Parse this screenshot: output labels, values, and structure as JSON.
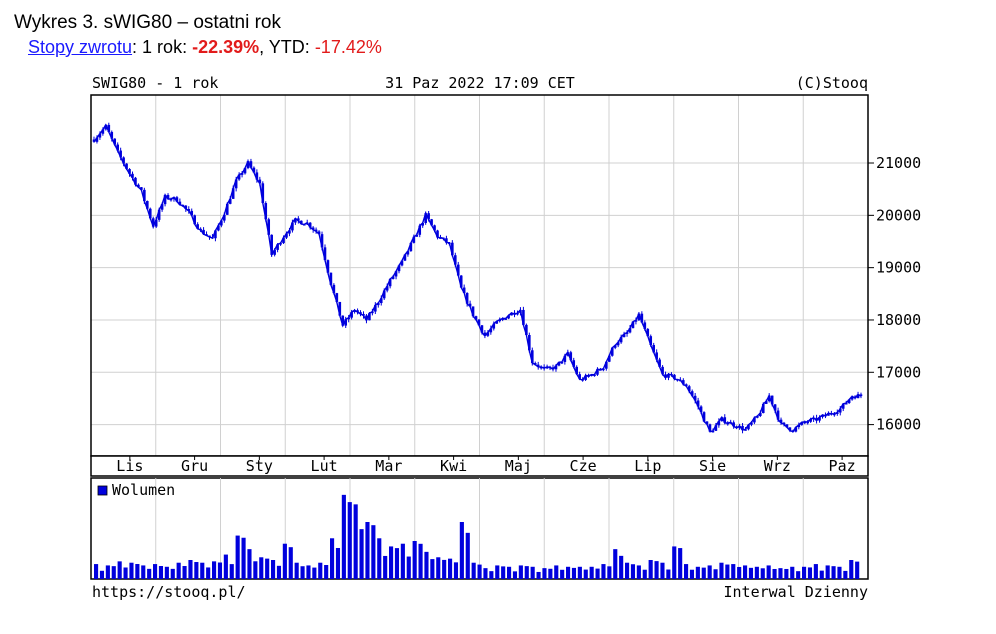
{
  "figure_title": "Wykres 3. sWIG80 – ostatni rok",
  "returns": {
    "link_label": "Stopy zwrotu",
    "one_year_label": ": 1 rok: ",
    "one_year_value": "-22.39%",
    "ytd_label": ", YTD: ",
    "ytd_value": "-17.42%"
  },
  "header": {
    "left": "SWIG80 - 1 rok",
    "center": "31 Paz 2022 17:09 CET",
    "right": "(C)Stooq"
  },
  "footer": {
    "left": "https://stooq.pl/",
    "right": "Interwal Dzienny"
  },
  "legend": {
    "volume": "Wolumen"
  },
  "colors": {
    "series": "#0000dd",
    "grid": "#d0d0d0"
  },
  "chart_data": {
    "type": "line",
    "title": "",
    "ylim": [
      15400,
      22300
    ],
    "yticks": [
      16000,
      17000,
      18000,
      19000,
      20000,
      21000
    ],
    "ytick_labels": [
      "16000",
      "17000",
      "18000",
      "19000",
      "20000",
      "21000"
    ],
    "month_labels": [
      "Lis",
      "Gru",
      "Sty",
      "Lut",
      "Mar",
      "Kwi",
      "Maj",
      "Cze",
      "Lip",
      "Sie",
      "Wrz",
      "Paz"
    ],
    "grid": true,
    "x_index": [
      0,
      4,
      8,
      12,
      16,
      20,
      24,
      28,
      32,
      36,
      40,
      44,
      48,
      52,
      56,
      60,
      64,
      68,
      72,
      76,
      80,
      84,
      88,
      92,
      96,
      100,
      104,
      108,
      112,
      116,
      120,
      124,
      128,
      132,
      136,
      140,
      144,
      148,
      152,
      156,
      160,
      164,
      168,
      172,
      176,
      180,
      184,
      188,
      192,
      196,
      200,
      204,
      208,
      212,
      216,
      220,
      224,
      228,
      232,
      236,
      240,
      244,
      248,
      252,
      256
    ],
    "x_points": 260,
    "close": [
      21450,
      21700,
      21200,
      20800,
      20450,
      19800,
      20350,
      20300,
      20050,
      19700,
      19550,
      20050,
      20650,
      21000,
      20600,
      19250,
      19600,
      19900,
      19850,
      19650,
      18700,
      17900,
      18200,
      18000,
      18350,
      18750,
      19100,
      19550,
      20000,
      19600,
      19450,
      18600,
      18100,
      17700,
      17950,
      18100,
      18200,
      17200,
      17050,
      17100,
      17350,
      16850,
      16950,
      17100,
      17550,
      17750,
      18100,
      17500,
      16950,
      16900,
      16750,
      16350,
      15850,
      16100,
      16000,
      15900,
      16150,
      16550,
      16000,
      15900,
      16050,
      16100,
      16200,
      16300,
      16550
    ],
    "volume_series": {
      "name": "Wolumen",
      "values": [
        11,
        10,
        13,
        12,
        10,
        11,
        9,
        12,
        14,
        12,
        13,
        18,
        32,
        22,
        16,
        14,
        26,
        12,
        10,
        12,
        30,
        62,
        55,
        42,
        30,
        24,
        26,
        28,
        20,
        16,
        15,
        42,
        12,
        8,
        10,
        9,
        10,
        9,
        8,
        10,
        9,
        9,
        9,
        11,
        22,
        12,
        10,
        14,
        12,
        24,
        11,
        9,
        10,
        12,
        11,
        10,
        9,
        10,
        8,
        9,
        9,
        11,
        10,
        9,
        14
      ]
    }
  }
}
